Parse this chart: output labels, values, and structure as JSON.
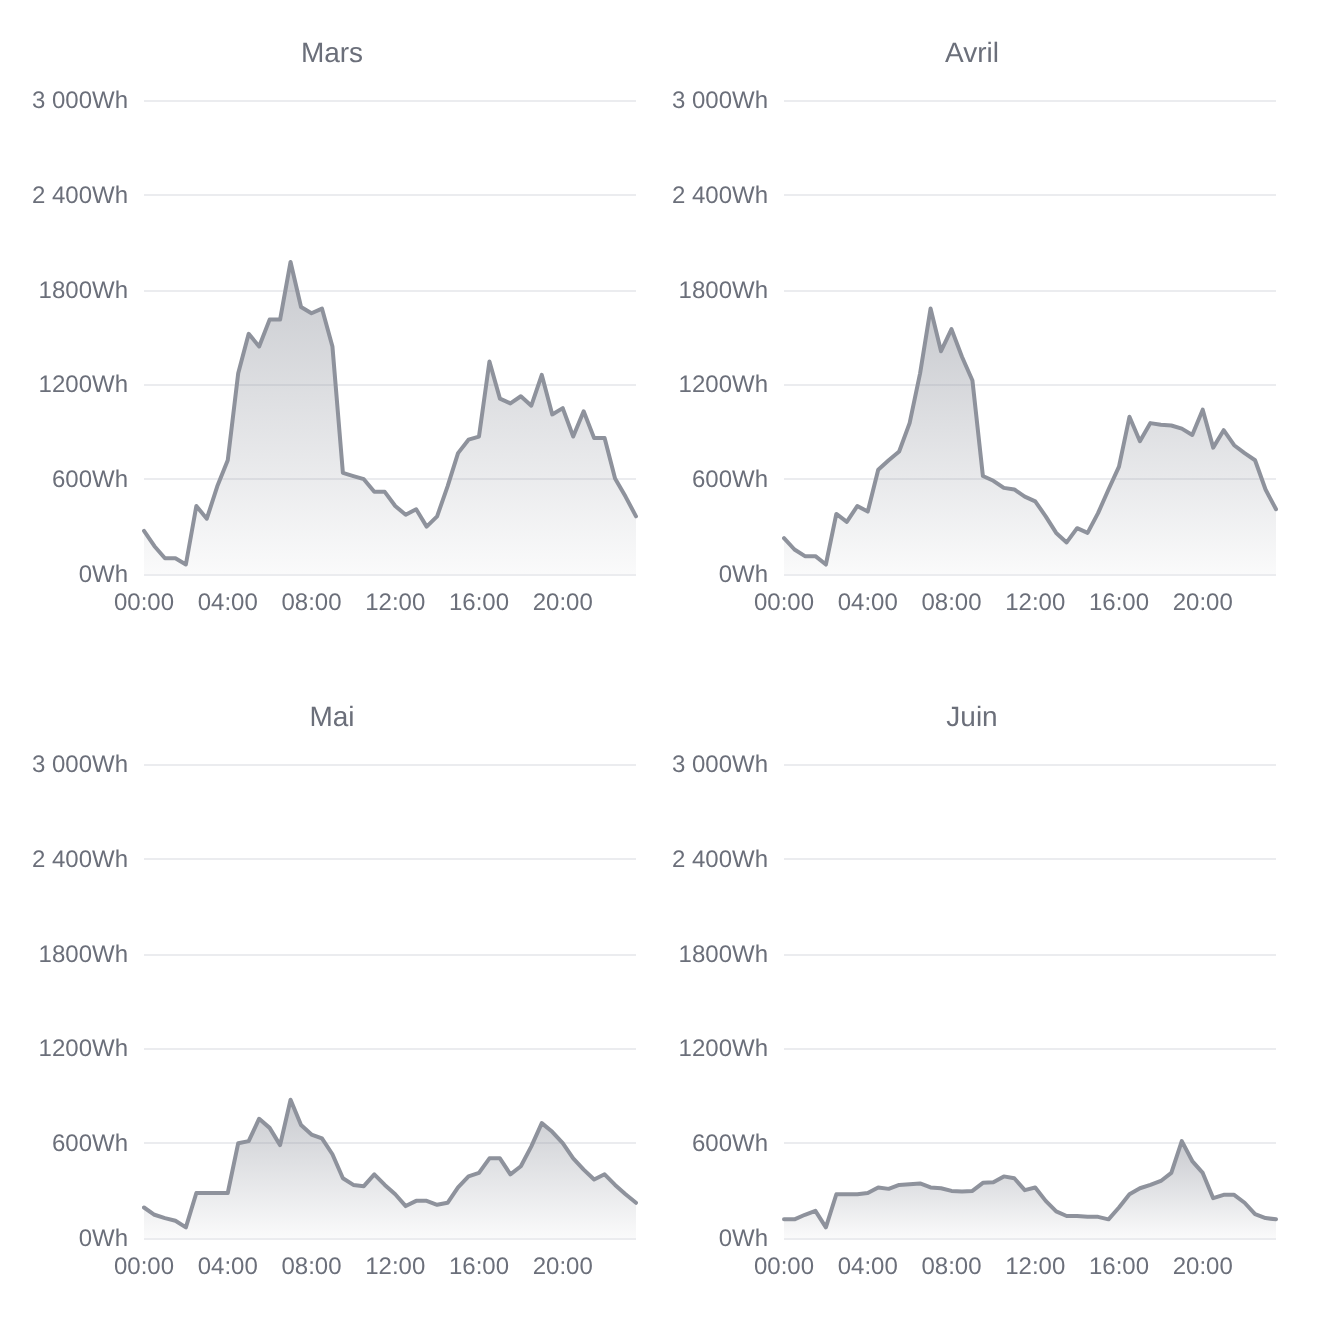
{
  "chart_data": [
    {
      "type": "area",
      "title": "Mars",
      "color": "#8e929c",
      "grid": "y",
      "xlim": [
        0,
        23.5
      ],
      "ylim": [
        0,
        3000
      ],
      "xticks": [
        {
          "value": 0,
          "label": "00:00"
        },
        {
          "value": 4,
          "label": "04:00"
        },
        {
          "value": 8,
          "label": "08:00"
        },
        {
          "value": 12,
          "label": "12:00"
        },
        {
          "value": 16,
          "label": "16:00"
        },
        {
          "value": 20,
          "label": "20:00"
        }
      ],
      "yticks": [
        {
          "value": 0,
          "label": "0Wh"
        },
        {
          "value": 600,
          "label": "600Wh"
        },
        {
          "value": 1200,
          "label": "1200Wh"
        },
        {
          "value": 1800,
          "label": "1800Wh"
        },
        {
          "value": 2400,
          "label": "2 400Wh"
        },
        {
          "value": 3000,
          "label": "3 000Wh"
        }
      ],
      "x": [
        0,
        0.5,
        1,
        1.5,
        2,
        2.5,
        3,
        3.5,
        4,
        4.5,
        5,
        5.5,
        6,
        6.5,
        7,
        7.5,
        8,
        8.5,
        9,
        9.5,
        10,
        10.5,
        11,
        11.5,
        12,
        12.5,
        13,
        13.5,
        14,
        14.5,
        15,
        15.5,
        16,
        16.5,
        17,
        17.5,
        18,
        18.5,
        19,
        19.5,
        20,
        20.5,
        21,
        21.5,
        22,
        22.5,
        23,
        23.5
      ],
      "values": [
        273,
        176,
        100,
        100,
        60,
        430,
        350,
        555,
        720,
        1270,
        1520,
        1440,
        1610,
        1610,
        1975,
        1690,
        1650,
        1680,
        1440,
        640,
        620,
        600,
        520,
        520,
        430,
        375,
        410,
        300,
        365,
        555,
        765,
        850,
        870,
        1345,
        1110,
        1080,
        1125,
        1065,
        1260,
        1010,
        1050,
        870,
        1030,
        860,
        860,
        605,
        490,
        365
      ]
    },
    {
      "type": "area",
      "title": "Avril",
      "color": "#8e929c",
      "grid": "y",
      "xlim": [
        0,
        23.5
      ],
      "ylim": [
        0,
        3000
      ],
      "xticks": [
        {
          "value": 0,
          "label": "00:00"
        },
        {
          "value": 4,
          "label": "04:00"
        },
        {
          "value": 8,
          "label": "08:00"
        },
        {
          "value": 12,
          "label": "12:00"
        },
        {
          "value": 16,
          "label": "16:00"
        },
        {
          "value": 20,
          "label": "20:00"
        }
      ],
      "yticks": [
        {
          "value": 0,
          "label": "0Wh"
        },
        {
          "value": 600,
          "label": "600Wh"
        },
        {
          "value": 1200,
          "label": "1200Wh"
        },
        {
          "value": 1800,
          "label": "1800Wh"
        },
        {
          "value": 2400,
          "label": "2 400Wh"
        },
        {
          "value": 3000,
          "label": "3 000Wh"
        }
      ],
      "x": [
        0,
        0.5,
        1,
        1.5,
        2,
        2.5,
        3,
        3.5,
        4,
        4.5,
        5,
        5.5,
        6,
        6.5,
        7,
        7.5,
        8,
        8.5,
        9,
        9.5,
        10,
        10.5,
        11,
        11.5,
        12,
        12.5,
        13,
        13.5,
        14,
        14.5,
        15,
        15.5,
        16,
        16.5,
        17,
        17.5,
        18,
        18.5,
        19,
        19.5,
        20,
        20.5,
        21,
        21.5,
        22,
        22.5,
        23,
        23.5
      ],
      "values": [
        227,
        155,
        113,
        113,
        60,
        380,
        330,
        430,
        395,
        660,
        720,
        775,
        955,
        1270,
        1680,
        1410,
        1550,
        1375,
        1225,
        620,
        590,
        545,
        535,
        490,
        460,
        365,
        260,
        200,
        290,
        260,
        385,
        535,
        680,
        995,
        840,
        955,
        945,
        940,
        920,
        880,
        1040,
        800,
        910,
        815,
        765,
        720,
        535,
        410
      ]
    },
    {
      "type": "area",
      "title": "Mai",
      "color": "#8e929c",
      "grid": "y",
      "xlim": [
        0,
        23.5
      ],
      "ylim": [
        0,
        3000
      ],
      "xticks": [
        {
          "value": 0,
          "label": "00:00"
        },
        {
          "value": 4,
          "label": "04:00"
        },
        {
          "value": 8,
          "label": "08:00"
        },
        {
          "value": 12,
          "label": "12:00"
        },
        {
          "value": 16,
          "label": "16:00"
        },
        {
          "value": 20,
          "label": "20:00"
        }
      ],
      "yticks": [
        {
          "value": 0,
          "label": "0Wh"
        },
        {
          "value": 600,
          "label": "600Wh"
        },
        {
          "value": 1200,
          "label": "1200Wh"
        },
        {
          "value": 1800,
          "label": "1800Wh"
        },
        {
          "value": 2400,
          "label": "2 400Wh"
        },
        {
          "value": 3000,
          "label": "3 000Wh"
        }
      ],
      "x": [
        0,
        0.5,
        1,
        1.5,
        2,
        2.5,
        3,
        3.5,
        4,
        4.5,
        5,
        5.5,
        6,
        6.5,
        7,
        7.5,
        8,
        8.5,
        9,
        9.5,
        10,
        10.5,
        11,
        11.5,
        12,
        12.5,
        13,
        13.5,
        14,
        14.5,
        15,
        15.5,
        16,
        16.5,
        17,
        17.5,
        18,
        18.5,
        19,
        19.5,
        20,
        20.5,
        21,
        21.5,
        22,
        22.5,
        23,
        23.5
      ],
      "values": [
        193,
        147,
        126,
        109,
        67,
        285,
        285,
        285,
        285,
        600,
        613,
        755,
        697,
        588,
        875,
        715,
        655,
        630,
        530,
        378,
        336,
        328,
        403,
        336,
        277,
        202,
        235,
        235,
        210,
        223,
        320,
        390,
        412,
        504,
        504,
        403,
        454,
        580,
        727,
        672,
        600,
        504,
        433,
        370,
        403,
        336,
        277,
        223
      ]
    },
    {
      "type": "area",
      "title": "Juin",
      "color": "#8e929c",
      "grid": "y",
      "xlim": [
        0,
        23.5
      ],
      "ylim": [
        0,
        3000
      ],
      "xticks": [
        {
          "value": 0,
          "label": "00:00"
        },
        {
          "value": 4,
          "label": "04:00"
        },
        {
          "value": 8,
          "label": "08:00"
        },
        {
          "value": 12,
          "label": "12:00"
        },
        {
          "value": 16,
          "label": "16:00"
        },
        {
          "value": 20,
          "label": "20:00"
        }
      ],
      "yticks": [
        {
          "value": 0,
          "label": "0Wh"
        },
        {
          "value": 600,
          "label": "600Wh"
        },
        {
          "value": 1200,
          "label": "1200Wh"
        },
        {
          "value": 1800,
          "label": "1800Wh"
        },
        {
          "value": 2400,
          "label": "2 400Wh"
        },
        {
          "value": 3000,
          "label": "3 000Wh"
        }
      ],
      "x": [
        0,
        0.5,
        1,
        1.5,
        2,
        2.5,
        3,
        3.5,
        4,
        4.5,
        5,
        5.5,
        6,
        6.5,
        7,
        7.5,
        8,
        8.5,
        9,
        9.5,
        10,
        10.5,
        11,
        11.5,
        12,
        12.5,
        13,
        13.5,
        14,
        14.5,
        15,
        15.5,
        16,
        16.5,
        17,
        17.5,
        18,
        18.5,
        19,
        19.5,
        20,
        20.5,
        21,
        21.5,
        22,
        22.5,
        23,
        23.5
      ],
      "values": [
        118,
        118,
        147,
        172,
        67,
        277,
        277,
        277,
        285,
        320,
        311,
        336,
        340,
        345,
        320,
        315,
        298,
        294,
        298,
        349,
        353,
        390,
        378,
        303,
        320,
        235,
        168,
        139,
        139,
        134,
        134,
        118,
        193,
        277,
        315,
        336,
        361,
        412,
        613,
        487,
        412,
        252,
        273,
        273,
        223,
        151,
        126,
        118
      ]
    }
  ]
}
